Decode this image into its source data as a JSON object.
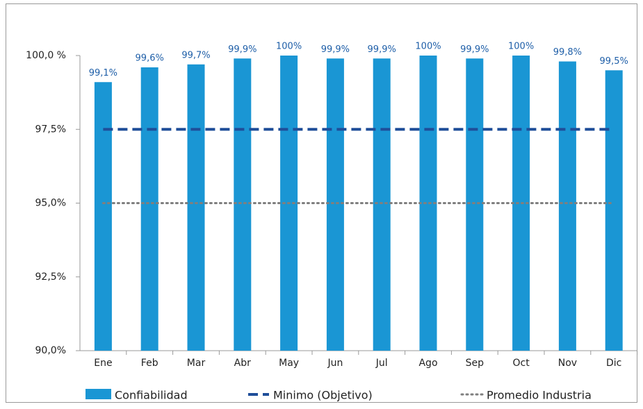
{
  "chart_data": {
    "type": "bar",
    "categories": [
      "Ene",
      "Feb",
      "Mar",
      "Abr",
      "May",
      "Jun",
      "Jul",
      "Ago",
      "Sep",
      "Oct",
      "Nov",
      "Dic"
    ],
    "series": [
      {
        "name": "Confiabilidad",
        "type": "bar",
        "color": "#1a96d4",
        "values": [
          99.1,
          99.6,
          99.7,
          99.9,
          100,
          99.9,
          99.9,
          100,
          99.9,
          100,
          99.8,
          99.5
        ],
        "value_labels": [
          "99,1%",
          "99,6%",
          "99,7%",
          "99,9%",
          "100%",
          "99,9%",
          "99,9%",
          "100%",
          "99,9%",
          "100%",
          "99,8%",
          "99,5%"
        ]
      },
      {
        "name": "Minimo (Objetivo)",
        "type": "line",
        "style": "dashed",
        "color": "#1f4e99",
        "values": [
          97.5,
          97.5,
          97.5,
          97.5,
          97.5,
          97.5,
          97.5,
          97.5,
          97.5,
          97.5,
          97.5,
          97.5
        ]
      },
      {
        "name": "Promedio Industria",
        "type": "line",
        "style": "dotted",
        "color": "#7f7f7f",
        "values": [
          95,
          95,
          95,
          95,
          95,
          95,
          95,
          95,
          95,
          95,
          95,
          95
        ]
      }
    ],
    "ylim": [
      90,
      100
    ],
    "yticks": [
      {
        "value": 90,
        "label": "90,0%"
      },
      {
        "value": 92.5,
        "label": "92,5%"
      },
      {
        "value": 95,
        "label": "95,0%"
      },
      {
        "value": 97.5,
        "label": "97,5%"
      },
      {
        "value": 100,
        "label": "100,0 %"
      }
    ],
    "grid": false
  }
}
